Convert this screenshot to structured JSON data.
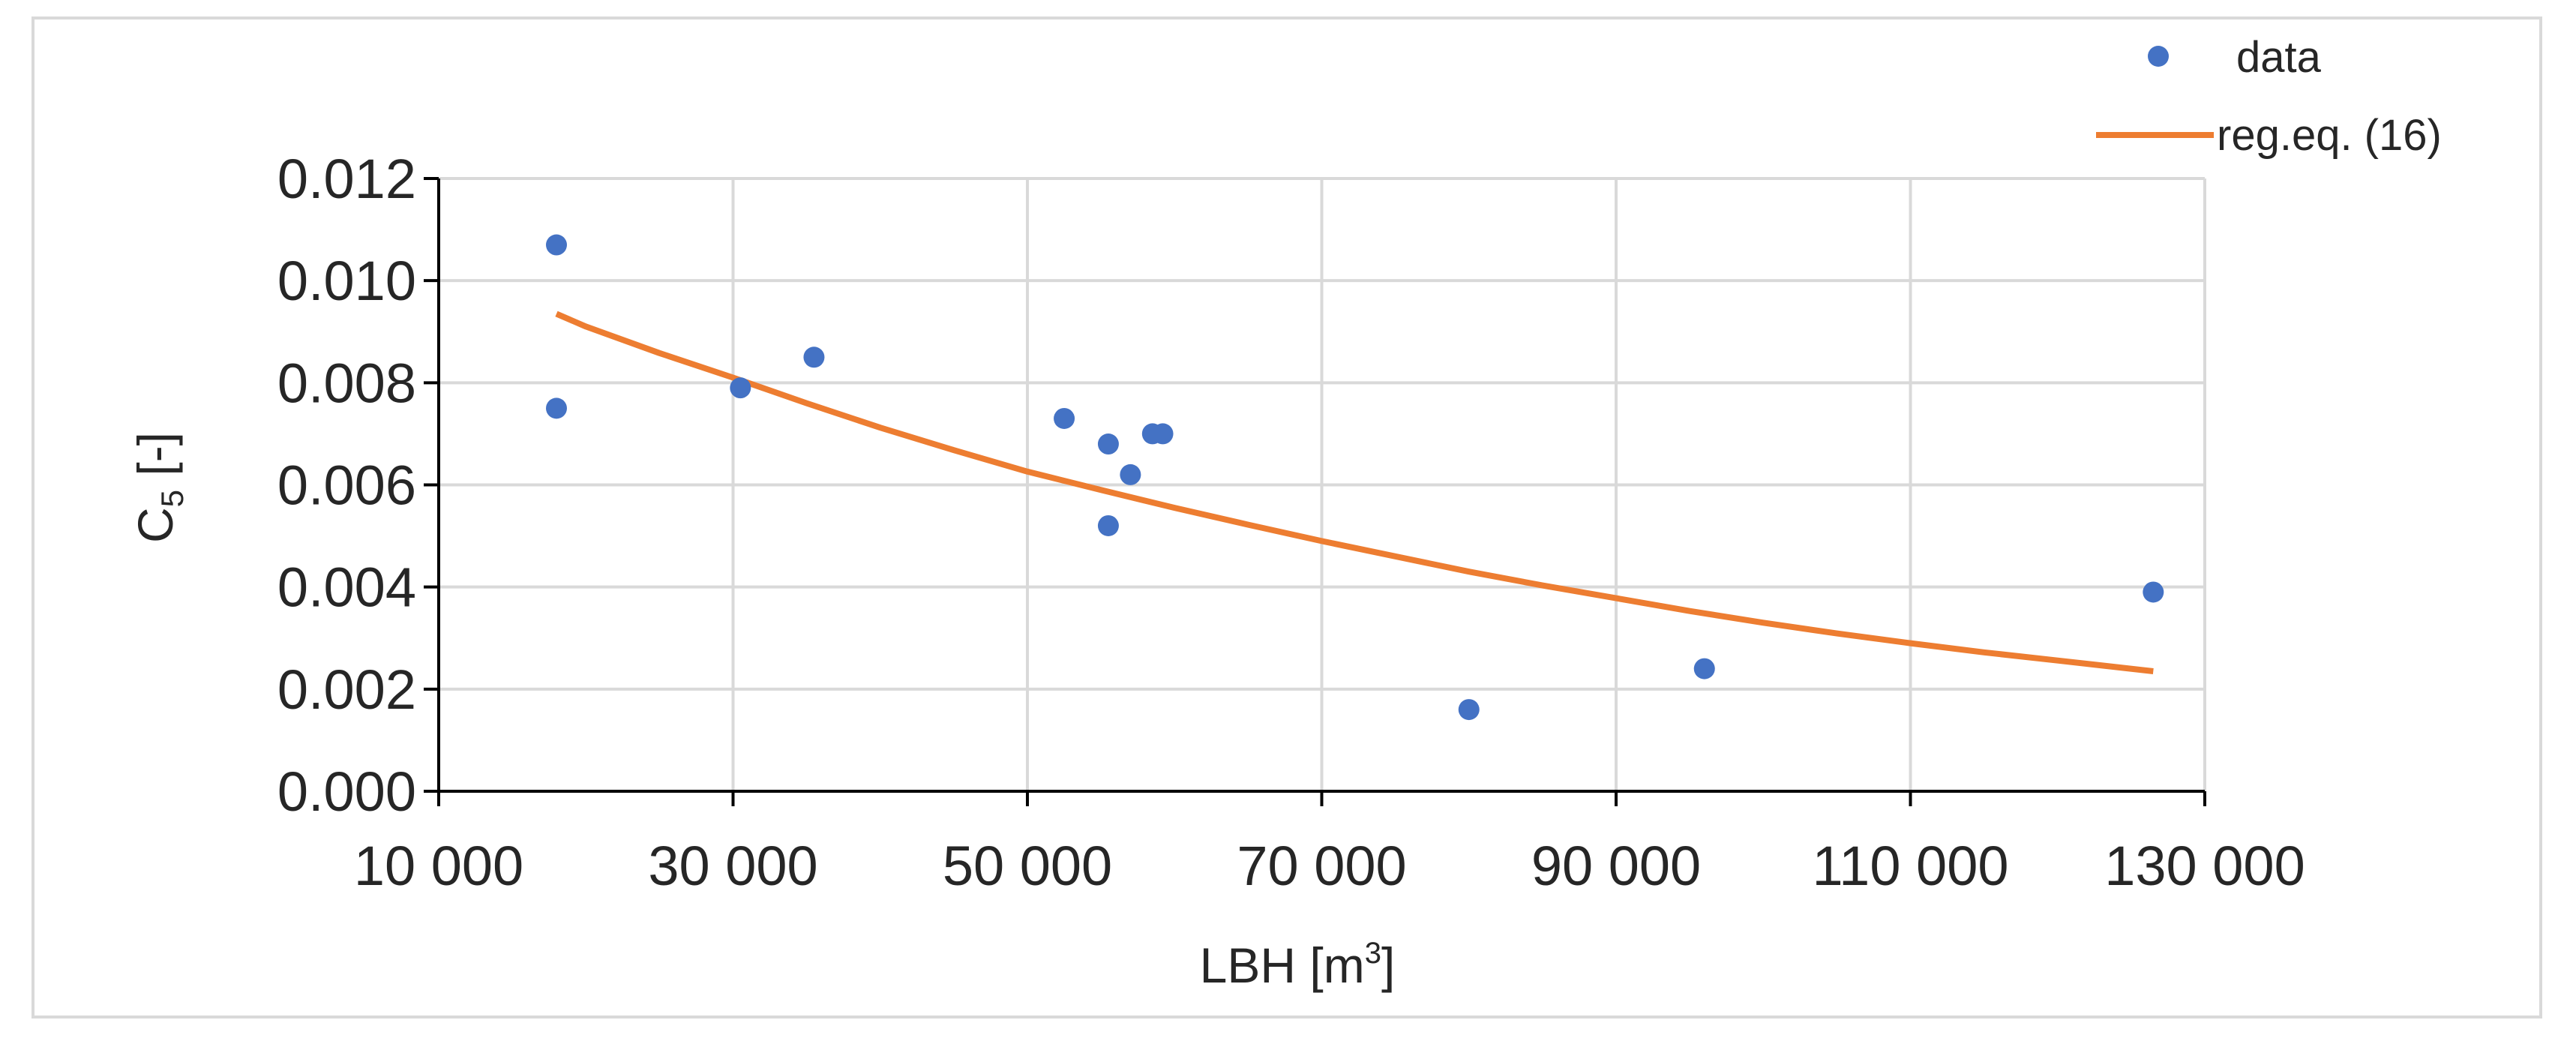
{
  "chart_data": {
    "type": "scatter",
    "xlabel_main": "LBH [m",
    "xlabel_sup": "3",
    "xlabel_end": "]",
    "ylabel_main": "C",
    "ylabel_sub": "5",
    "ylabel_end": " [-]",
    "xlim": [
      10000,
      130000
    ],
    "ylim": [
      0,
      0.012
    ],
    "xticks": [
      10000,
      30000,
      50000,
      70000,
      90000,
      110000,
      130000
    ],
    "xtick_labels": [
      "10 000",
      "30 000",
      "50 000",
      "70 000",
      "90 000",
      "110 000",
      "130 000"
    ],
    "yticks": [
      0,
      0.002,
      0.004,
      0.006,
      0.008,
      0.01,
      0.012
    ],
    "ytick_labels": [
      "0.000",
      "0.002",
      "0.004",
      "0.006",
      "0.008",
      "0.010",
      "0.012"
    ],
    "grid": true,
    "legend_position": "top-right",
    "series": [
      {
        "name": "data",
        "kind": "scatter",
        "color": "#4472c4",
        "points": [
          [
            18000,
            0.0107
          ],
          [
            18000,
            0.0075
          ],
          [
            30500,
            0.0079
          ],
          [
            35500,
            0.0085
          ],
          [
            52500,
            0.0073
          ],
          [
            55500,
            0.0068
          ],
          [
            55500,
            0.0052
          ],
          [
            57000,
            0.0062
          ],
          [
            58500,
            0.007
          ],
          [
            59200,
            0.007
          ],
          [
            80000,
            0.0016
          ],
          [
            96000,
            0.0024
          ],
          [
            126500,
            0.0039
          ]
        ]
      },
      {
        "name": "reg.eq. (16)",
        "kind": "line",
        "color": "#ed7d31",
        "points": [
          [
            18000,
            0.00935
          ],
          [
            20000,
            0.0091
          ],
          [
            25000,
            0.00858
          ],
          [
            30000,
            0.0081
          ],
          [
            35000,
            0.0076
          ],
          [
            40000,
            0.00712
          ],
          [
            45000,
            0.00668
          ],
          [
            50000,
            0.00626
          ],
          [
            55000,
            0.0059
          ],
          [
            60000,
            0.00555
          ],
          [
            65000,
            0.00522
          ],
          [
            70000,
            0.0049
          ],
          [
            75000,
            0.0046
          ],
          [
            80000,
            0.0043
          ],
          [
            85000,
            0.00403
          ],
          [
            90000,
            0.00378
          ],
          [
            95000,
            0.00353
          ],
          [
            100000,
            0.0033
          ],
          [
            105000,
            0.00309
          ],
          [
            110000,
            0.0029
          ],
          [
            115000,
            0.00272
          ],
          [
            120000,
            0.00256
          ],
          [
            126500,
            0.00235
          ]
        ]
      }
    ]
  }
}
